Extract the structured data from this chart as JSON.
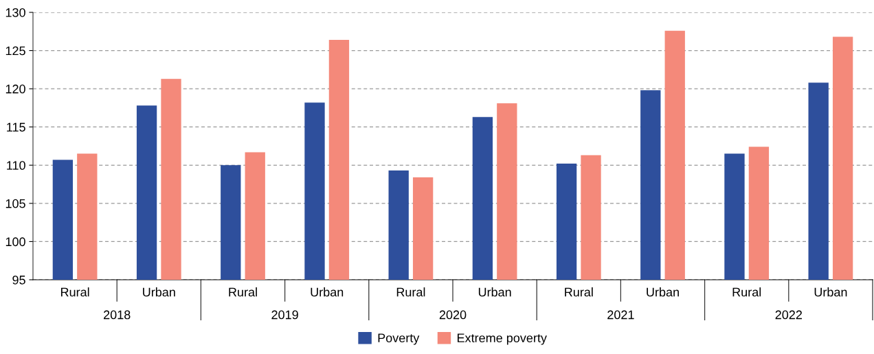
{
  "chart_data": {
    "type": "bar",
    "categories": [
      "Rural",
      "Urban",
      "Rural",
      "Urban",
      "Rural",
      "Urban",
      "Rural",
      "Urban",
      "Rural",
      "Urban"
    ],
    "series": [
      {
        "name": "Poverty",
        "color": "#2e4f9c",
        "values": [
          110.7,
          117.8,
          110.0,
          118.2,
          109.3,
          116.3,
          110.2,
          119.8,
          111.5,
          120.8
        ]
      },
      {
        "name": "Extreme poverty",
        "color": "#f4897a",
        "values": [
          111.5,
          121.3,
          111.7,
          126.4,
          108.4,
          118.1,
          111.3,
          127.6,
          112.4,
          126.8
        ]
      }
    ],
    "annotations": [
      "2018",
      "2019",
      "2020",
      "2021",
      "2022"
    ],
    "ylim": [
      95,
      130
    ],
    "yticks": [
      95,
      100,
      105,
      110,
      115,
      120,
      125,
      130
    ],
    "grid": "y",
    "legend": "bottom"
  }
}
